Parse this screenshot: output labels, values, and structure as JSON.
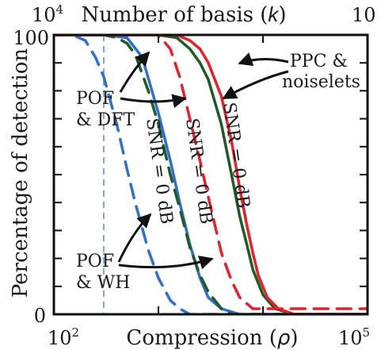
{
  "chart_data": {
    "type": "line",
    "top_axis": {
      "label_prefix": "Number of basis (",
      "label_var": "k",
      "label_suffix": ")",
      "tick_left_base": "10",
      "tick_left_exp": "4",
      "tick_right": "10"
    },
    "bottom_axis": {
      "label_prefix": "Compression (",
      "label_var": "ρ",
      "label_suffix": ")",
      "scale": "log",
      "xlim": [
        100,
        100000
      ],
      "tick_left_base": "10",
      "tick_left_exp": "2",
      "tick_right_base": "10",
      "tick_right_exp": "5"
    },
    "ylabel": "Percentage of detection",
    "ylim": [
      0,
      100
    ],
    "yticks": [
      "100",
      "0"
    ],
    "reference_line_x": 300,
    "annotations": {
      "pof_dft": [
        "POF",
        "& DFT"
      ],
      "ppc_noiselets": [
        "PPC &",
        "noiselets"
      ],
      "pof_wh": [
        "POF",
        "& WH"
      ],
      "snr": "SNR = 0 dB"
    },
    "colors": {
      "blue": "#2e6fd0",
      "green": "#1c5c24",
      "red": "#e8202a",
      "reference": "#8aa6c4",
      "arrow": "#111111"
    },
    "series": [
      {
        "color": "blue",
        "style": "solid",
        "x": [
          100,
          300,
          500,
          700,
          1000,
          1300,
          1600,
          2000,
          2500,
          3000,
          4000,
          6000,
          10000,
          100000
        ],
        "y": [
          100,
          100,
          99,
          92,
          72,
          55,
          40,
          25,
          13,
          6,
          2,
          0,
          0,
          0
        ]
      },
      {
        "color": "blue",
        "style": "dashed",
        "x": [
          100,
          150,
          200,
          250,
          300,
          400,
          500,
          600,
          800,
          1000,
          1300,
          1600,
          2000,
          100000
        ],
        "y": [
          100,
          100,
          98,
          92,
          85,
          68,
          52,
          40,
          23,
          13,
          5,
          2,
          0,
          0
        ]
      },
      {
        "color": "green",
        "style": "solid",
        "x": [
          100,
          1000,
          1500,
          2000,
          2500,
          3000,
          4000,
          5000,
          6000,
          7000,
          8000,
          10000,
          13000,
          20000,
          100000
        ],
        "y": [
          100,
          100,
          99,
          95,
          90,
          84,
          68,
          50,
          35,
          25,
          16,
          7,
          2,
          0,
          0
        ]
      },
      {
        "color": "green",
        "style": "dashed",
        "x": [
          100,
          300,
          400,
          500,
          600,
          800,
          1000,
          1300,
          1600,
          2000,
          2500,
          3000,
          4000,
          5000,
          100000
        ],
        "y": [
          100,
          100,
          99,
          97,
          93,
          80,
          68,
          50,
          38,
          24,
          14,
          8,
          2,
          0,
          0
        ]
      },
      {
        "color": "red",
        "style": "solid",
        "x": [
          100,
          1000,
          1500,
          2000,
          2500,
          3000,
          4000,
          5000,
          6000,
          7000,
          8000,
          9000,
          11000,
          14000,
          20000,
          100000
        ],
        "y": [
          100,
          100,
          100,
          98,
          95,
          90,
          78,
          62,
          45,
          32,
          22,
          14,
          6,
          2,
          0,
          0
        ]
      },
      {
        "color": "red",
        "style": "dashed",
        "x": [
          100,
          1000,
          1300,
          1600,
          2000,
          2500,
          3000,
          4000,
          5000,
          6000,
          8000,
          100000
        ],
        "y": [
          100,
          100,
          95,
          85,
          70,
          55,
          42,
          22,
          12,
          6,
          2,
          2
        ]
      }
    ]
  }
}
